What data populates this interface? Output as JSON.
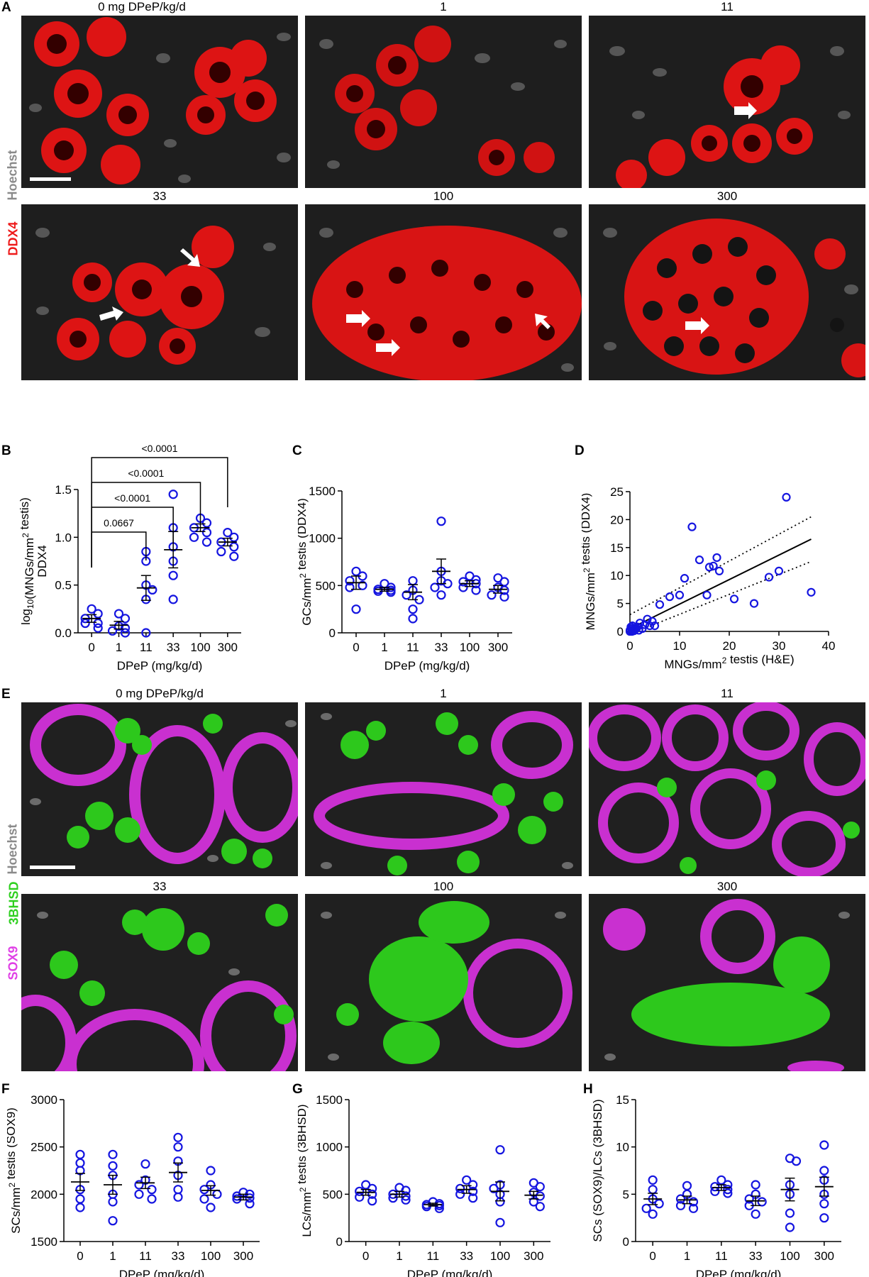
{
  "colors": {
    "ddx4": "#ff1a1a",
    "hoechst": "#9a9a9a",
    "hsd": "#33dd22",
    "sox9": "#e040e6",
    "point": "#1515e0"
  },
  "panelA": {
    "letter": "A",
    "titles": [
      "0 mg DPeP/kg/d",
      "1",
      "11",
      "33",
      "100",
      "300"
    ],
    "stain_hoechst": "Hoechst",
    "stain_ddx4": "DDX4"
  },
  "panelE": {
    "letter": "E",
    "titles": [
      "0 mg DPeP/kg/d",
      "1",
      "11",
      "33",
      "100",
      "300"
    ],
    "stain_hoechst": "Hoechst",
    "stain_3bhsd": "3BHSD",
    "stain_sox9": "SOX9"
  },
  "chart_data": [
    {
      "panel": "B",
      "type": "scatter",
      "categories": [
        "0",
        "1",
        "11",
        "33",
        "100",
        "300"
      ],
      "xlabel": "DPeP (mg/kg/d)",
      "ylabel_line1": "log10(MNGs/mm2 testis)",
      "ylabel_line2": "DDX4",
      "ylim": [
        0,
        1.5
      ],
      "yticks": [
        "0.0",
        "0.5",
        "1.0",
        "1.5"
      ],
      "points": [
        [
          0.25,
          0.2,
          0.15,
          0.1,
          0.05,
          0.1
        ],
        [
          0.05,
          0.2,
          0.15,
          0.0,
          0.02,
          0.07
        ],
        [
          0.85,
          0.75,
          0.45,
          0.5,
          0.35,
          0.0
        ],
        [
          1.45,
          1.1,
          0.9,
          0.75,
          0.6,
          0.35
        ],
        [
          1.2,
          1.15,
          1.1,
          1.05,
          1.0,
          0.95
        ],
        [
          1.05,
          1.0,
          0.95,
          0.9,
          0.85,
          0.8
        ]
      ],
      "mean": [
        0.15,
        0.08,
        0.47,
        0.87,
        1.1,
        0.95
      ],
      "sem": [
        0.04,
        0.04,
        0.13,
        0.19,
        0.04,
        0.04
      ],
      "comparisons": [
        {
          "to": "11",
          "label": "0.0667"
        },
        {
          "to": "33",
          "label": "<0.0001"
        },
        {
          "to": "100",
          "label": "<0.0001"
        },
        {
          "to": "300",
          "label": "<0.0001"
        }
      ]
    },
    {
      "panel": "C",
      "type": "scatter",
      "categories": [
        "0",
        "1",
        "11",
        "33",
        "100",
        "300"
      ],
      "xlabel": "DPeP (mg/kg/d)",
      "ylabel": "GCs/mm2 testis  (DDX4)",
      "ylim": [
        0,
        1500
      ],
      "yticks": [
        "0",
        "500",
        "1000",
        "1500"
      ],
      "points": [
        [
          650,
          600,
          550,
          500,
          480,
          250
        ],
        [
          520,
          480,
          460,
          450,
          440,
          430
        ],
        [
          550,
          450,
          400,
          350,
          250,
          150
        ],
        [
          1180,
          650,
          550,
          520,
          480,
          400
        ],
        [
          600,
          560,
          540,
          520,
          480,
          450
        ],
        [
          580,
          540,
          480,
          450,
          400,
          380
        ]
      ],
      "mean": [
        530,
        460,
        430,
        650,
        520,
        460
      ],
      "sem": [
        70,
        20,
        80,
        130,
        30,
        40
      ]
    },
    {
      "panel": "D",
      "type": "scatter",
      "xlabel": "MNGs/mm2 testis (H&E)",
      "ylabel": "MNGs/mm2 testis (DDX4)",
      "xlim": [
        0,
        40
      ],
      "ylim": [
        0,
        25
      ],
      "xticks": [
        "0",
        "10",
        "20",
        "30",
        "40"
      ],
      "yticks": [
        "0",
        "5",
        "10",
        "15",
        "20",
        "25"
      ],
      "points_xy": [
        [
          0,
          0
        ],
        [
          0.3,
          0.5
        ],
        [
          0.5,
          1
        ],
        [
          1,
          0.3
        ],
        [
          1.5,
          0.8
        ],
        [
          2,
          1.5
        ],
        [
          2.5,
          0.5
        ],
        [
          3,
          1.2
        ],
        [
          3.5,
          2.2
        ],
        [
          4,
          1
        ],
        [
          4.5,
          1.8
        ],
        [
          5,
          1
        ],
        [
          0,
          0.2
        ],
        [
          0.2,
          0.8
        ],
        [
          0.8,
          0.1
        ],
        [
          1.2,
          0.6
        ],
        [
          0.4,
          0
        ],
        [
          0.6,
          0.3
        ],
        [
          1.8,
          0.2
        ],
        [
          6,
          4.8
        ],
        [
          8,
          6.2
        ],
        [
          10,
          6.5
        ],
        [
          11,
          9.5
        ],
        [
          12.5,
          18.7
        ],
        [
          14,
          12.8
        ],
        [
          15.5,
          6.5
        ],
        [
          16,
          11.5
        ],
        [
          16.8,
          11.7
        ],
        [
          17.5,
          13.2
        ],
        [
          18,
          10.8
        ],
        [
          21,
          5.8
        ],
        [
          25,
          5
        ],
        [
          28,
          9.7
        ],
        [
          30,
          10.8
        ],
        [
          31.5,
          24
        ],
        [
          36.5,
          7
        ]
      ],
      "fit": {
        "x0": 0,
        "y0": 0.5,
        "x1": 36.5,
        "y1": 16.5
      },
      "ci_upper": {
        "x0": 0,
        "y0": 3,
        "x1": 36.5,
        "y1": 20.5
      },
      "ci_lower": {
        "x0": 0,
        "y0": -0.5,
        "x1": 36.5,
        "y1": 12.5
      }
    },
    {
      "panel": "F",
      "type": "scatter",
      "categories": [
        "0",
        "1",
        "11",
        "33",
        "100",
        "300"
      ],
      "xlabel": "DPeP (mg/kg/d)",
      "ylabel": "SCs/mm2 testis  (SOX9)",
      "ylim": [
        1500,
        3000
      ],
      "yticks": [
        "1500",
        "2000",
        "2500",
        "3000"
      ],
      "points": [
        [
          2420,
          2330,
          2250,
          2050,
          1950,
          1860
        ],
        [
          2420,
          2300,
          2200,
          2000,
          1920,
          1720
        ],
        [
          2320,
          2150,
          2100,
          2050,
          2000,
          1950
        ],
        [
          2600,
          2500,
          2350,
          2200,
          2050,
          1970
        ],
        [
          2250,
          2100,
          2050,
          2000,
          1950,
          1860
        ],
        [
          2020,
          2000,
          1980,
          1960,
          1950,
          1900
        ]
      ],
      "mean": [
        2130,
        2100,
        2120,
        2230,
        2040,
        1970
      ],
      "sem": [
        90,
        100,
        60,
        100,
        50,
        30
      ]
    },
    {
      "panel": "G",
      "type": "scatter",
      "categories": [
        "0",
        "1",
        "11",
        "33",
        "100",
        "300"
      ],
      "xlabel": "DPeP (mg/kg/d)",
      "ylabel": "LCs/mm2 testis  (3BHSD)",
      "ylim": [
        0,
        1500
      ],
      "yticks": [
        "0",
        "500",
        "1000",
        "1500"
      ],
      "points": [
        [
          600,
          560,
          530,
          500,
          470,
          430
        ],
        [
          570,
          540,
          500,
          480,
          460,
          440
        ],
        [
          420,
          400,
          390,
          380,
          370,
          350
        ],
        [
          650,
          600,
          560,
          530,
          500,
          460
        ],
        [
          970,
          600,
          560,
          500,
          420,
          200
        ],
        [
          620,
          580,
          520,
          480,
          420,
          370
        ]
      ],
      "mean": [
        520,
        500,
        390,
        550,
        530,
        490
      ],
      "sem": [
        30,
        30,
        15,
        40,
        100,
        40
      ]
    },
    {
      "panel": "H",
      "type": "scatter",
      "categories": [
        "0",
        "1",
        "11",
        "33",
        "100",
        "300"
      ],
      "xlabel": "DPeP (mg/kg/d)",
      "ylabel": "SCs (SOX9)/LCs (3BHSD)",
      "ylim": [
        0,
        15
      ],
      "yticks": [
        "0",
        "5",
        "10",
        "15"
      ],
      "points": [
        [
          6.5,
          5.5,
          4.5,
          4.0,
          3.5,
          2.9
        ],
        [
          5.9,
          5.0,
          4.5,
          4.2,
          3.8,
          3.5
        ],
        [
          6.5,
          6.0,
          5.8,
          5.5,
          5.3,
          5.1
        ],
        [
          6.0,
          5.0,
          4.5,
          4.2,
          3.8,
          2.9
        ],
        [
          8.8,
          8.5,
          6.0,
          5.0,
          3.0,
          1.5
        ],
        [
          10.2,
          7.5,
          6.5,
          5.0,
          4.0,
          2.5
        ]
      ],
      "mean": [
        4.5,
        4.4,
        5.7,
        4.3,
        5.5,
        5.8
      ],
      "sem": [
        0.6,
        0.4,
        0.3,
        0.5,
        1.2,
        1.0
      ]
    }
  ]
}
